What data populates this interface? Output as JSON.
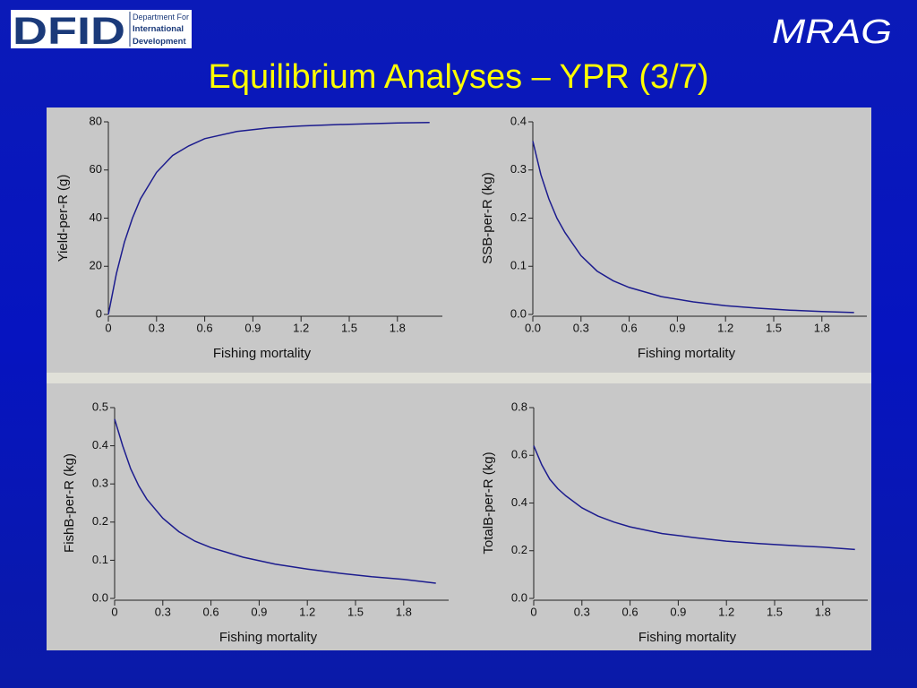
{
  "header": {
    "title": "Equilibrium Analyses – YPR (3/7)",
    "logo_left": "DFID",
    "logo_left_lines": [
      "Department For",
      "International",
      "Development"
    ],
    "logo_right": "MRAG"
  },
  "chart_data": [
    {
      "type": "line",
      "x_label": "Fishing mortality",
      "y_label": "Yield-per-R (g)",
      "color": "#1c1c8e",
      "x": [
        0,
        0.05,
        0.1,
        0.15,
        0.2,
        0.3,
        0.4,
        0.5,
        0.6,
        0.8,
        1.0,
        1.2,
        1.4,
        1.6,
        1.8,
        2.0
      ],
      "values": [
        0,
        17,
        30,
        40,
        48,
        59,
        66,
        70,
        73,
        76,
        77.5,
        78.3,
        78.8,
        79.2,
        79.5,
        79.7
      ],
      "xlim": [
        0,
        2.08
      ],
      "ylim": [
        0,
        80
      ],
      "xticks": [
        0,
        0.3,
        0.6,
        0.9,
        1.2,
        1.5,
        1.8
      ],
      "yticks": [
        0,
        20,
        40,
        60,
        80
      ]
    },
    {
      "type": "line",
      "x_label": "Fishing mortality",
      "y_label": "SSB-per-R (kg)",
      "color": "#1c1c8e",
      "x": [
        0,
        0.05,
        0.1,
        0.15,
        0.2,
        0.3,
        0.4,
        0.5,
        0.6,
        0.8,
        1.0,
        1.2,
        1.4,
        1.6,
        1.8,
        2.0
      ],
      "values": [
        0.36,
        0.29,
        0.24,
        0.2,
        0.17,
        0.122,
        0.09,
        0.07,
        0.056,
        0.037,
        0.026,
        0.018,
        0.013,
        0.009,
        0.006,
        0.004
      ],
      "xlim": [
        0,
        2.08
      ],
      "ylim": [
        0,
        0.4
      ],
      "xticks": [
        {
          "value": 0,
          "label": "0.0"
        },
        0.3,
        0.6,
        0.9,
        1.2,
        1.5,
        1.8
      ],
      "yticks": [
        {
          "value": 0,
          "label": "0.0"
        },
        0.1,
        0.2,
        0.3,
        0.4
      ]
    },
    {
      "type": "line",
      "x_label": "Fishing mortality",
      "y_label": "FishB-per-R (kg)",
      "color": "#1c1c8e",
      "x": [
        0,
        0.05,
        0.1,
        0.15,
        0.2,
        0.3,
        0.4,
        0.5,
        0.6,
        0.8,
        1.0,
        1.2,
        1.4,
        1.6,
        1.8,
        2.0
      ],
      "values": [
        0.47,
        0.4,
        0.34,
        0.295,
        0.26,
        0.21,
        0.175,
        0.15,
        0.133,
        0.108,
        0.09,
        0.077,
        0.066,
        0.057,
        0.05,
        0.04
      ],
      "xlim": [
        0,
        2.08
      ],
      "ylim": [
        0,
        0.5
      ],
      "xticks": [
        0,
        0.3,
        0.6,
        0.9,
        1.2,
        1.5,
        1.8
      ],
      "yticks": [
        {
          "value": 0,
          "label": "0.0"
        },
        0.1,
        0.2,
        0.3,
        0.4,
        0.5
      ]
    },
    {
      "type": "line",
      "x_label": "Fishing mortality",
      "y_label": "TotalB-per-R (kg)",
      "color": "#1c1c8e",
      "x": [
        0,
        0.05,
        0.1,
        0.15,
        0.2,
        0.3,
        0.4,
        0.5,
        0.6,
        0.8,
        1.0,
        1.2,
        1.4,
        1.6,
        1.8,
        2.0
      ],
      "values": [
        0.64,
        0.56,
        0.5,
        0.46,
        0.43,
        0.38,
        0.345,
        0.32,
        0.3,
        0.272,
        0.255,
        0.24,
        0.23,
        0.222,
        0.215,
        0.205
      ],
      "xlim": [
        0,
        2.08
      ],
      "ylim": [
        0,
        0.8
      ],
      "xticks": [
        0,
        0.3,
        0.6,
        0.9,
        1.2,
        1.5,
        1.8
      ],
      "yticks": [
        {
          "value": 0,
          "label": "0.0"
        },
        0.2,
        0.4,
        0.6,
        0.8
      ]
    }
  ]
}
